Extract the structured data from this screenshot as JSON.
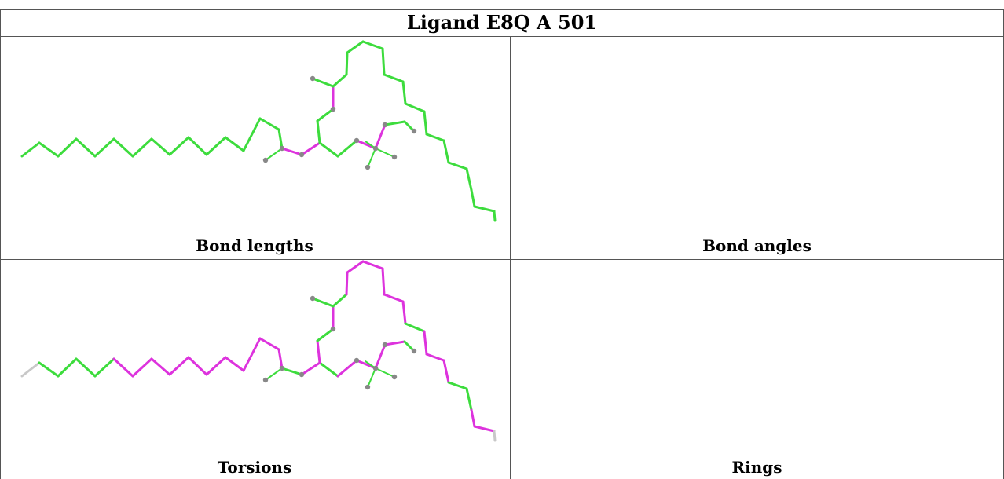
{
  "title": "Ligand E8Q A 501",
  "panels": [
    {
      "caption": "Bond lengths"
    },
    {
      "caption": "Bond angles"
    },
    {
      "caption": "Torsions"
    },
    {
      "caption": "Rings"
    }
  ],
  "colors": {
    "good": "#3ddc3d",
    "outlier": "#dd33dd",
    "neutral": "#c8c8c8",
    "atom": "#888888",
    "border": "#555555"
  }
}
